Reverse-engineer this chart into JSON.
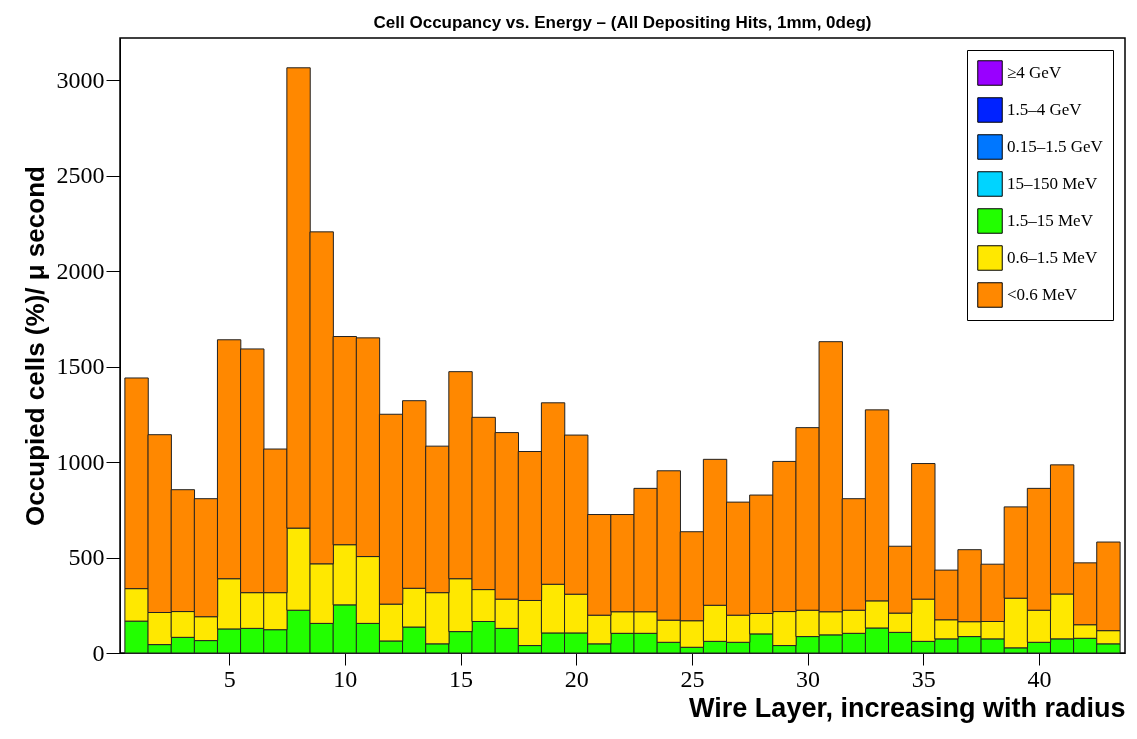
{
  "chart_data": {
    "type": "bar",
    "title": "Cell Occupancy vs. Energy –  (All Depositing Hits, 1mm, 0deg)",
    "xlabel": "Wire Layer, increasing with radius",
    "ylabel": "Occupied cells (%)/ μ second",
    "x": [
      1,
      2,
      3,
      4,
      5,
      6,
      7,
      8,
      9,
      10,
      11,
      12,
      13,
      14,
      15,
      16,
      17,
      18,
      19,
      20,
      21,
      22,
      23,
      24,
      25,
      26,
      27,
      28,
      29,
      30,
      31,
      32,
      33,
      34,
      35,
      36,
      37,
      38,
      39,
      40,
      41,
      42,
      43
    ],
    "stacked": true,
    "legend": "top right",
    "series": [
      {
        "name": "≥4 GeV",
        "color": "#9900ff",
        "values": [
          0,
          0,
          0,
          0,
          0,
          0,
          0,
          0,
          0,
          0,
          0,
          0,
          0,
          0,
          0,
          0,
          0,
          0,
          0,
          0,
          0,
          0,
          0,
          0,
          0,
          0,
          0,
          0,
          0,
          0,
          0,
          0,
          0,
          0,
          0,
          0,
          0,
          0,
          0,
          0,
          0,
          0,
          0
        ]
      },
      {
        "name": "1.5–4 GeV",
        "color": "#0022ff",
        "values": [
          0,
          0,
          0,
          0,
          0,
          0,
          0,
          0,
          0,
          0,
          0,
          0,
          0,
          0,
          0,
          0,
          0,
          0,
          0,
          0,
          0,
          0,
          0,
          0,
          0,
          0,
          0,
          0,
          0,
          0,
          0,
          0,
          0,
          0,
          0,
          0,
          0,
          0,
          0,
          0,
          0,
          0,
          0
        ]
      },
      {
        "name": "0.15–1.5 GeV",
        "color": "#0077ff",
        "values": [
          0,
          0,
          0,
          0,
          0,
          0,
          0,
          0,
          0,
          0,
          0,
          0,
          0,
          0,
          0,
          0,
          0,
          0,
          0,
          0,
          0,
          0,
          0,
          0,
          0,
          0,
          0,
          0,
          0,
          0,
          0,
          0,
          0,
          0,
          0,
          0,
          0,
          0,
          0,
          0,
          0,
          0,
          0
        ]
      },
      {
        "name": "15–150 MeV",
        "color": "#00d4ff",
        "values": [
          0,
          0,
          0,
          0,
          0,
          0,
          0,
          0,
          0,
          0,
          0,
          0,
          0,
          0,
          0,
          0,
          0,
          0,
          0,
          0,
          0,
          0,
          0,
          0,
          0,
          0,
          0,
          0,
          0,
          0,
          0,
          0,
          0,
          0,
          0,
          0,
          0,
          0,
          0,
          0,
          0,
          0,
          0
        ]
      },
      {
        "name": "1.5–15 MeV",
        "color": "#22ff00",
        "values": [
          167,
          44,
          82,
          65,
          126,
          129,
          122,
          224,
          155,
          252,
          155,
          63,
          136,
          48,
          112,
          165,
          129,
          39,
          105,
          105,
          48,
          103,
          103,
          56,
          30,
          61,
          56,
          100,
          39,
          86,
          95,
          103,
          131,
          108,
          61,
          74,
          86,
          74,
          27,
          56,
          74,
          77,
          48
        ]
      },
      {
        "name": "0.6–1.5 MeV",
        "color": "#ffe800",
        "values": [
          170,
          168,
          135,
          125,
          263,
          187,
          194,
          430,
          312,
          315,
          350,
          193,
          203,
          268,
          277,
          167,
          153,
          236,
          255,
          203,
          150,
          113,
          113,
          116,
          139,
          189,
          142,
          107,
          178,
          138,
          121,
          121,
          142,
          101,
          221,
          100,
          78,
          91,
          260,
          168,
          235,
          71,
          69
        ]
      },
      {
        "name": "<0.6 MeV",
        "color": "#ff8800",
        "values": [
          1103,
          931,
          638,
          618,
          1251,
          1276,
          752,
          2410,
          1738,
          1090,
          1145,
          994,
          982,
          767,
          1084,
          902,
          872,
          780,
          950,
          833,
          527,
          509,
          646,
          782,
          466,
          764,
          592,
          620,
          786,
          956,
          1414,
          584,
          1000,
          350,
          710,
          260,
          377,
          300,
          478,
          638,
          676,
          324,
          464
        ]
      }
    ],
    "xlim": [
      0.5,
      43.5
    ],
    "xticks": [
      5,
      10,
      15,
      20,
      25,
      30,
      35,
      40
    ],
    "ylim": [
      0,
      3220
    ],
    "yticks": [
      0,
      500,
      1000,
      1500,
      2000,
      2500,
      3000
    ]
  }
}
